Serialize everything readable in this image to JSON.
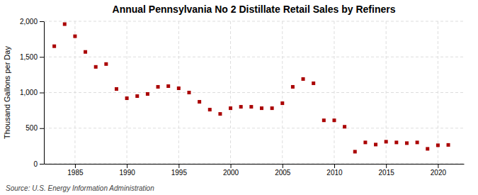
{
  "chart_data": {
    "type": "scatter",
    "title": "Annual Pennsylvania No 2 Distillate Retail Sales by Refiners",
    "ylabel": "Thousand Gallons per Day",
    "source": "Source: U.S. Energy Information Administration",
    "x": [
      1983,
      1984,
      1985,
      1986,
      1987,
      1988,
      1989,
      1990,
      1991,
      1992,
      1993,
      1994,
      1995,
      1996,
      1997,
      1998,
      1999,
      2000,
      2001,
      2002,
      2003,
      2004,
      2005,
      2006,
      2007,
      2008,
      2009,
      2010,
      2011,
      2012,
      2013,
      2014,
      2015,
      2016,
      2017,
      2018,
      2019,
      2020,
      2021
    ],
    "values": [
      1650,
      1960,
      1790,
      1570,
      1360,
      1400,
      1050,
      920,
      950,
      980,
      1080,
      1090,
      1060,
      1000,
      870,
      760,
      700,
      780,
      800,
      800,
      780,
      780,
      850,
      1080,
      1190,
      1130,
      610,
      610,
      520,
      170,
      300,
      270,
      310,
      300,
      290,
      300,
      210,
      260,
      265
    ],
    "color": "#aa0000",
    "marker": "square",
    "xlim": [
      1982,
      2022.5
    ],
    "xticks": [
      1985,
      1990,
      1995,
      2000,
      2005,
      2010,
      2015,
      2020
    ],
    "ylim": [
      0,
      2000
    ],
    "yticks": [
      0,
      500,
      {
        "value": 1000,
        "label": "1,000"
      },
      {
        "value": 1500,
        "label": "1,500"
      },
      {
        "value": 2000,
        "label": "2,000"
      }
    ],
    "grid": true
  }
}
